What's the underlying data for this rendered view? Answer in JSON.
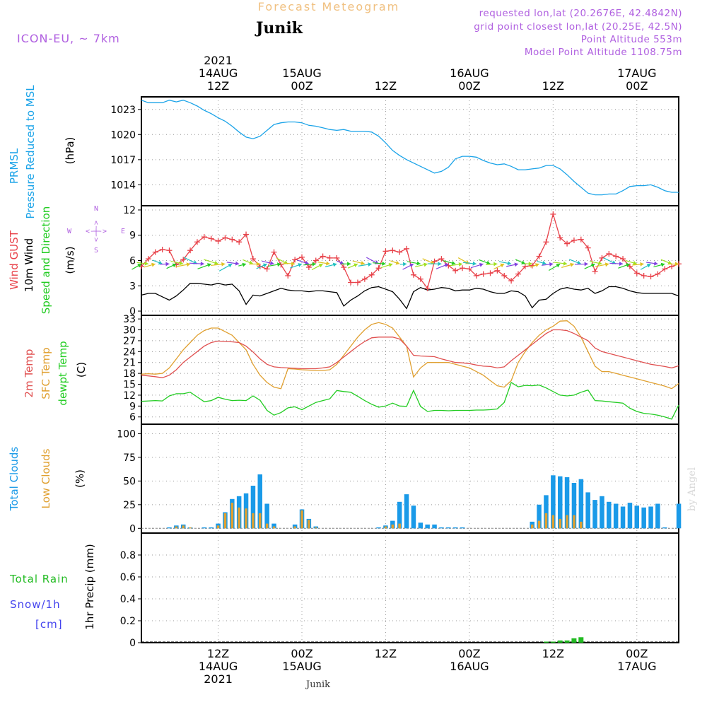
{
  "header": {
    "forecast_title": "Forecast Meteogram",
    "location": "Junik",
    "model": "ICON-EU, ~ 7km",
    "requested": "requested lon,lat (20.2676E, 42.4842N)",
    "grid_point": "grid point closest lon,lat (20.25E, 42.5N)",
    "point_altitude": "Point Altitude 553m",
    "model_altitude": "Model Point Altitude 1108.75m",
    "footer_location": "Junik",
    "watermark": "by Angel"
  },
  "time_axis": {
    "top_labels": [
      {
        "t": 12,
        "lines": [
          "2021",
          "14AUG",
          "12Z"
        ]
      },
      {
        "t": 24,
        "lines": [
          "15AUG",
          "00Z"
        ]
      },
      {
        "t": 36,
        "lines": [
          "12Z"
        ]
      },
      {
        "t": 48,
        "lines": [
          "16AUG",
          "00Z"
        ]
      },
      {
        "t": 60,
        "lines": [
          "12Z"
        ]
      },
      {
        "t": 72,
        "lines": [
          "17AUG",
          "00Z"
        ]
      }
    ],
    "bottom_labels": [
      {
        "t": 12,
        "lines": [
          "12Z",
          "14AUG",
          "2021"
        ]
      },
      {
        "t": 24,
        "lines": [
          "00Z",
          "15AUG"
        ]
      },
      {
        "t": 36,
        "lines": [
          "12Z"
        ]
      },
      {
        "t": 48,
        "lines": [
          "00Z",
          "16AUG"
        ]
      },
      {
        "t": 60,
        "lines": [
          "12Z"
        ]
      },
      {
        "t": 72,
        "lines": [
          "00Z",
          "17AUG"
        ]
      }
    ]
  },
  "panel_labels": {
    "pressure": {
      "name": "PRMSL",
      "desc": "Pressure Reduced to MSL",
      "unit": "(hPa)"
    },
    "wind": {
      "gust": "Wind GUST",
      "wind": "10m Wind",
      "dir": "Speed and Direction",
      "unit": "(m/s)",
      "compass": {
        "n": "N",
        "s": "S",
        "w": "W",
        "e": "E",
        "arrow": "<-|->"
      }
    },
    "temp": {
      "t2m": "2m Temp",
      "sfc": "SFC Temp",
      "dew": "dewpt Temp",
      "unit": "(C)"
    },
    "clouds": {
      "total": "Total Clouds",
      "low": "Low Clouds",
      "unit": "(%)"
    },
    "precip": {
      "rain": "Total  Rain",
      "snow": "Snow/1h",
      "snow_unit": "[cm]",
      "unit": "1hr Precip (mm)"
    }
  },
  "colors": {
    "pressure": "#1aa3e8",
    "gust": "#e8424a",
    "wind": "#000000",
    "t2m": "#e05050",
    "sfc": "#e0a030",
    "dew": "#22cc22",
    "total_clouds": "#1a9ae8",
    "low_clouds": "#e0a030",
    "rain": "#22bb22",
    "snow": "#4444ee",
    "title": "#f0c080",
    "meta": "#b060e0"
  },
  "chart_data": {
    "type": "line",
    "time_unit": "hours from 14AUG 00Z",
    "x_range": [
      1,
      78
    ],
    "pressure": {
      "name": "PRMSL",
      "unit": "hPa",
      "yticks": [
        1014,
        1017,
        1020,
        1023
      ],
      "ylim": [
        1011.5,
        1024.5
      ],
      "x": [
        1,
        2,
        3,
        4,
        5,
        6,
        7,
        8,
        9,
        10,
        11,
        12,
        13,
        14,
        15,
        16,
        17,
        18,
        19,
        20,
        21,
        22,
        23,
        24,
        25,
        26,
        27,
        28,
        29,
        30,
        31,
        32,
        33,
        34,
        35,
        36,
        37,
        38,
        39,
        40,
        41,
        42,
        43,
        44,
        45,
        46,
        47,
        48,
        49,
        50,
        51,
        52,
        53,
        54,
        55,
        56,
        57,
        58,
        59,
        60,
        61,
        62,
        63,
        64,
        65,
        66,
        67,
        68,
        69,
        70,
        71,
        72,
        73,
        74,
        75,
        76,
        77,
        78
      ],
      "values": [
        1024.1,
        1023.8,
        1023.8,
        1023.8,
        1024.1,
        1023.9,
        1024.1,
        1023.8,
        1023.4,
        1022.9,
        1022.5,
        1022.0,
        1021.6,
        1021.0,
        1020.3,
        1019.7,
        1019.5,
        1019.8,
        1020.5,
        1021.2,
        1021.4,
        1021.5,
        1021.5,
        1021.4,
        1021.1,
        1021.0,
        1020.8,
        1020.6,
        1020.5,
        1020.6,
        1020.4,
        1020.4,
        1020.4,
        1020.3,
        1019.8,
        1019.0,
        1018.1,
        1017.5,
        1017.0,
        1016.6,
        1016.2,
        1015.8,
        1015.4,
        1015.6,
        1016.1,
        1017.1,
        1017.4,
        1017.4,
        1017.3,
        1016.9,
        1016.6,
        1016.4,
        1016.5,
        1016.2,
        1015.8,
        1015.8,
        1015.9,
        1016.0,
        1016.3,
        1016.3,
        1015.9,
        1015.2,
        1014.4,
        1013.7,
        1013.0,
        1012.8,
        1012.8,
        1012.9,
        1012.9,
        1013.3,
        1013.8,
        1013.9,
        1013.9,
        1014.0,
        1013.7,
        1013.3,
        1013.1,
        1013.1
      ]
    },
    "wind": {
      "unit": "m/s",
      "yticks": [
        0,
        3,
        6,
        9,
        12
      ],
      "ylim": [
        -0.5,
        12.5
      ],
      "gust_x": [
        1,
        2,
        3,
        4,
        5,
        6,
        7,
        8,
        9,
        10,
        11,
        12,
        13,
        14,
        15,
        16,
        17,
        18,
        19,
        20,
        21,
        22,
        23,
        24,
        25,
        26,
        27,
        28,
        29,
        30,
        31,
        32,
        33,
        34,
        35,
        36,
        37,
        38,
        39,
        40,
        41,
        42,
        43,
        44,
        45,
        46,
        47,
        48,
        49,
        50,
        51,
        52,
        53,
        54,
        55,
        56,
        57,
        58,
        59,
        60,
        61,
        62,
        63,
        64,
        65,
        66,
        67,
        68,
        69,
        70,
        71,
        72,
        73,
        74,
        75,
        76,
        77,
        78
      ],
      "gust": [
        5.3,
        6.2,
        7.0,
        7.3,
        7.2,
        5.5,
        6.1,
        7.2,
        8.2,
        8.8,
        8.6,
        8.3,
        8.7,
        8.5,
        8.2,
        9.1,
        6.2,
        5.3,
        5.0,
        7.0,
        5.5,
        4.2,
        6.1,
        6.4,
        5.2,
        6.0,
        6.5,
        6.3,
        6.3,
        5.2,
        3.4,
        3.4,
        3.8,
        4.3,
        5.1,
        7.1,
        7.2,
        7.0,
        7.4,
        4.3,
        3.8,
        2.7,
        5.9,
        6.2,
        5.4,
        4.8,
        5.1,
        5.0,
        4.2,
        4.4,
        4.5,
        4.8,
        4.2,
        3.6,
        4.4,
        5.3,
        5.4,
        6.5,
        8.2,
        11.5,
        8.7,
        8.0,
        8.4,
        8.5,
        7.5,
        4.7,
        6.3,
        6.8,
        6.5,
        6.2,
        5.3,
        4.5,
        4.2,
        4.1,
        4.4,
        5.0,
        5.3,
        5.6
      ],
      "wind_x": [
        1,
        2,
        3,
        4,
        5,
        6,
        7,
        8,
        9,
        10,
        11,
        12,
        13,
        14,
        15,
        16,
        17,
        18,
        19,
        20,
        21,
        22,
        23,
        24,
        25,
        26,
        27,
        28,
        29,
        30,
        31,
        32,
        33,
        34,
        35,
        36,
        37,
        38,
        39,
        40,
        41,
        42,
        43,
        44,
        45,
        46,
        47,
        48,
        49,
        50,
        51,
        52,
        53,
        54,
        55,
        56,
        57,
        58,
        59,
        60,
        61,
        62,
        63,
        64,
        65,
        66,
        67,
        68,
        69,
        70,
        71,
        72,
        73,
        74,
        75,
        76,
        77,
        78
      ],
      "wind": [
        1.9,
        2.1,
        2.1,
        1.7,
        1.3,
        1.8,
        2.5,
        3.3,
        3.3,
        3.2,
        3.1,
        3.3,
        3.1,
        3.2,
        2.4,
        0.8,
        1.9,
        1.8,
        2.1,
        2.4,
        2.7,
        2.5,
        2.4,
        2.4,
        2.3,
        2.4,
        2.4,
        2.3,
        2.2,
        0.6,
        1.3,
        1.8,
        2.4,
        2.8,
        2.9,
        2.6,
        2.3,
        1.4,
        0.3,
        2.3,
        2.8,
        2.5,
        2.6,
        2.8,
        2.7,
        2.4,
        2.5,
        2.5,
        2.7,
        2.6,
        2.3,
        2.1,
        2.1,
        2.4,
        2.3,
        1.8,
        0.4,
        1.3,
        1.4,
        2.1,
        2.6,
        2.8,
        2.6,
        2.5,
        2.7,
        2.1,
        2.4,
        2.9,
        2.9,
        2.7,
        2.4,
        2.2,
        2.1,
        2.1,
        2.1,
        2.1,
        2.1,
        1.8
      ]
    },
    "temperature": {
      "unit": "C",
      "yticks": [
        6,
        9,
        12,
        15,
        18,
        21,
        24,
        27,
        30,
        33
      ],
      "ylim": [
        4,
        34
      ],
      "x": [
        1,
        2,
        3,
        4,
        5,
        6,
        7,
        8,
        9,
        10,
        11,
        12,
        13,
        14,
        15,
        16,
        17,
        18,
        19,
        20,
        21,
        22,
        23,
        24,
        25,
        26,
        27,
        28,
        29,
        30,
        31,
        32,
        33,
        34,
        35,
        36,
        37,
        38,
        39,
        40,
        41,
        42,
        43,
        44,
        45,
        46,
        47,
        48,
        49,
        50,
        51,
        52,
        53,
        54,
        55,
        56,
        57,
        58,
        59,
        60,
        61,
        62,
        63,
        64,
        65,
        66,
        67,
        68,
        69,
        70,
        71,
        72,
        73,
        74,
        75,
        76,
        77,
        78
      ],
      "t2m": [
        17.5,
        17.3,
        17.1,
        16.8,
        17.5,
        19.0,
        21.0,
        22.5,
        24.0,
        25.5,
        26.5,
        26.9,
        26.8,
        26.7,
        26.5,
        25.5,
        23.9,
        22.0,
        20.5,
        19.8,
        19.6,
        19.5,
        19.4,
        19.3,
        19.3,
        19.3,
        19.5,
        19.8,
        21.0,
        22.5,
        24.0,
        25.5,
        26.8,
        27.8,
        28.0,
        28.0,
        28.0,
        27.5,
        25.5,
        23.0,
        22.8,
        22.7,
        22.6,
        22.0,
        21.5,
        21.0,
        20.9,
        20.7,
        20.3,
        20.0,
        19.9,
        19.5,
        19.8,
        21.5,
        23.0,
        24.5,
        26.0,
        27.5,
        29.0,
        30.0,
        30.0,
        29.8,
        29.0,
        28.0,
        27.0,
        25.0,
        24.0,
        23.5,
        23.0,
        22.5,
        22.0,
        21.5,
        21.0,
        20.5,
        20.2,
        19.9,
        19.5,
        20.1
      ],
      "sfc": [
        17.8,
        17.9,
        17.8,
        18.0,
        19.5,
        22.0,
        24.5,
        26.5,
        28.5,
        29.8,
        30.5,
        30.5,
        29.5,
        28.5,
        26.5,
        24.5,
        20.5,
        17.5,
        15.5,
        14.2,
        13.8,
        19.3,
        19.2,
        19.0,
        18.9,
        18.8,
        18.8,
        19.0,
        20.5,
        23.0,
        25.5,
        28.0,
        30.0,
        31.5,
        32.0,
        31.5,
        30.5,
        28.0,
        25.5,
        17.0,
        19.5,
        21.0,
        21.0,
        21.0,
        21.0,
        20.5,
        20.0,
        19.5,
        18.5,
        17.5,
        16.0,
        14.6,
        14.2,
        16.0,
        21.0,
        24.0,
        26.5,
        28.5,
        30.0,
        31.0,
        32.4,
        32.5,
        31.0,
        28.0,
        24.0,
        20.0,
        18.5,
        18.5,
        18.0,
        17.5,
        17.0,
        16.5,
        16.0,
        15.5,
        15.0,
        14.5,
        13.8,
        15.2
      ],
      "dew": [
        10.3,
        10.4,
        10.5,
        10.4,
        11.8,
        12.4,
        12.4,
        12.8,
        11.5,
        10.2,
        10.5,
        11.4,
        10.9,
        10.5,
        10.6,
        10.5,
        11.8,
        10.6,
        7.8,
        6.5,
        7.2,
        8.5,
        8.8,
        8.0,
        9.0,
        10.0,
        10.5,
        11.0,
        13.3,
        13.0,
        12.8,
        11.7,
        10.5,
        9.5,
        8.7,
        9.0,
        9.8,
        9.0,
        8.9,
        13.3,
        8.9,
        7.5,
        7.8,
        7.8,
        7.7,
        7.8,
        7.8,
        7.8,
        7.9,
        7.9,
        8.0,
        8.2,
        10.0,
        15.5,
        14.3,
        14.7,
        14.6,
        14.8,
        14.0,
        13.0,
        12.0,
        11.8,
        12.0,
        12.8,
        13.4,
        10.5,
        10.4,
        10.2,
        10.0,
        9.8,
        8.4,
        7.5,
        7.0,
        6.8,
        6.5,
        6.0,
        5.4,
        9.3
      ]
    },
    "clouds": {
      "unit": "%",
      "yticks": [
        0,
        25,
        50,
        75,
        100
      ],
      "ylim": [
        -5,
        110
      ],
      "x": [
        5,
        6,
        7,
        8,
        10,
        11,
        12,
        13,
        14,
        15,
        16,
        17,
        18,
        19,
        20,
        23,
        24,
        25,
        26,
        35,
        36,
        37,
        38,
        39,
        40,
        41,
        42,
        43,
        44,
        45,
        46,
        47,
        57,
        58,
        59,
        60,
        61,
        62,
        63,
        64,
        65,
        66,
        67,
        68,
        69,
        70,
        71,
        72,
        73,
        74,
        75,
        76,
        78
      ],
      "total": [
        1,
        3,
        4,
        1,
        1,
        1,
        5,
        17,
        31,
        34,
        37,
        45,
        57,
        26,
        5,
        4,
        20,
        10,
        2,
        1,
        3,
        8,
        28,
        36,
        24,
        6,
        4,
        4,
        1,
        1,
        1,
        1,
        7,
        25,
        35,
        56,
        55,
        54,
        48,
        52,
        38,
        30,
        34,
        28,
        26,
        23,
        27,
        24,
        22,
        23,
        26,
        1,
        26
      ],
      "low": [
        0,
        2,
        3,
        1,
        0,
        0,
        3,
        16,
        27,
        22,
        21,
        16,
        16,
        5,
        2,
        2,
        19,
        9,
        1,
        0,
        2,
        4,
        5,
        0,
        0,
        0,
        0,
        0,
        0,
        0,
        0,
        0,
        4,
        8,
        16,
        14,
        10,
        14,
        14,
        7,
        0,
        0,
        0,
        0,
        0,
        0,
        0,
        0,
        0,
        0,
        0,
        0,
        0
      ]
    },
    "precip": {
      "unit": "mm",
      "yticks": [
        0,
        0.2,
        0.4,
        0.6,
        0.8
      ],
      "ylim": [
        0,
        1.0
      ],
      "x": [
        59,
        60,
        61,
        62,
        63,
        64
      ],
      "rain": [
        0.01,
        0.01,
        0.02,
        0.02,
        0.04,
        0.05
      ],
      "snow_line": 0
    }
  }
}
